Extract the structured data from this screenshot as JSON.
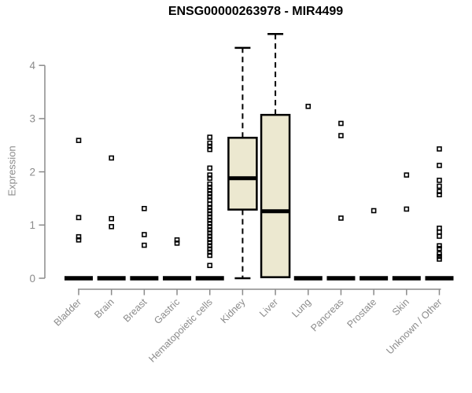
{
  "colors": {
    "background": "#ffffff",
    "title_text": "#000000",
    "axis": "#8b8b8b",
    "tick_text": "#8b8b8b",
    "box_fill": "#ece8d0",
    "box_stroke": "#000000"
  },
  "chart_data": {
    "type": "boxplot",
    "title": "ENSG00000263978 - MIR4499",
    "xlabel": "",
    "ylabel": "Expression",
    "ylim": [
      0,
      4.65
    ],
    "yticks": [
      0,
      1,
      2,
      3,
      4
    ],
    "grid": false,
    "legend": false,
    "categories": [
      "Bladder",
      "Brain",
      "Breast",
      "Gastric",
      "Hematopoietic cells",
      "Kidney",
      "Liver",
      "Lung",
      "Pancreas",
      "Prostate",
      "Skin",
      "Unknown / Other"
    ],
    "boxes": [
      {
        "category": "Bladder",
        "collapsed": true,
        "median": 0,
        "outliers": [
          2.59,
          1.14,
          0.78,
          0.72
        ]
      },
      {
        "category": "Brain",
        "collapsed": true,
        "median": 0,
        "outliers": [
          2.26,
          1.12,
          0.97
        ]
      },
      {
        "category": "Breast",
        "collapsed": true,
        "median": 0,
        "outliers": [
          1.31,
          0.82,
          0.62
        ]
      },
      {
        "category": "Gastric",
        "collapsed": true,
        "median": 0,
        "outliers": [
          0.72,
          0.66
        ]
      },
      {
        "category": "Hematopoietic cells",
        "collapsed": true,
        "median": 0,
        "outliers": [
          2.65,
          2.54,
          2.48,
          2.42,
          2.07,
          1.94,
          1.88,
          1.77,
          1.71,
          1.65,
          1.59,
          1.53,
          1.47,
          1.39,
          1.33,
          1.27,
          1.21,
          1.15,
          1.09,
          1.03,
          0.97,
          0.91,
          0.85,
          0.79,
          0.73,
          0.67,
          0.61,
          0.55,
          0.49,
          0.43,
          0.24
        ]
      },
      {
        "category": "Kidney",
        "collapsed": false,
        "q1": 1.29,
        "median": 1.88,
        "q3": 2.64,
        "whisker_low": 0.0,
        "whisker_high": 4.33,
        "outliers": []
      },
      {
        "category": "Liver",
        "collapsed": false,
        "q1": 0.02,
        "median": 1.26,
        "q3": 3.07,
        "whisker_low": 0.02,
        "whisker_high": 4.59,
        "outliers": []
      },
      {
        "category": "Lung",
        "collapsed": true,
        "median": 0,
        "outliers": [
          3.23
        ]
      },
      {
        "category": "Pancreas",
        "collapsed": true,
        "median": 0,
        "outliers": [
          2.91,
          2.68,
          1.13
        ]
      },
      {
        "category": "Prostate",
        "collapsed": true,
        "median": 0,
        "outliers": [
          1.27
        ]
      },
      {
        "category": "Skin",
        "collapsed": true,
        "median": 0,
        "outliers": [
          1.94,
          1.3
        ]
      },
      {
        "category": "Unknown / Other",
        "collapsed": true,
        "median": 0,
        "outliers": [
          2.43,
          2.12,
          1.84,
          1.73,
          1.63,
          1.57,
          0.94,
          0.87,
          0.79,
          0.61,
          0.56,
          0.46,
          0.41,
          0.36
        ]
      }
    ]
  }
}
